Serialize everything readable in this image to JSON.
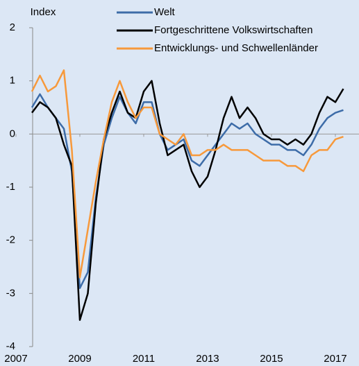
{
  "chart_data": {
    "type": "line",
    "y_label": "Index",
    "x": [
      2007.5,
      2007.75,
      2008,
      2008.25,
      2008.5,
      2008.75,
      2009,
      2009.25,
      2009.5,
      2009.75,
      2010,
      2010.25,
      2010.5,
      2010.75,
      2011,
      2011.25,
      2011.5,
      2011.75,
      2012,
      2012.25,
      2012.5,
      2012.75,
      2013,
      2013.25,
      2013.5,
      2013.75,
      2014,
      2014.25,
      2014.5,
      2014.75,
      2015,
      2015.25,
      2015.5,
      2015.75,
      2016,
      2016.25,
      2016.5,
      2016.75,
      2017,
      2017.25
    ],
    "series": [
      {
        "name": "Welt",
        "color": "#3d6ca8",
        "values": [
          0.5,
          0.75,
          0.5,
          0.3,
          0.1,
          -0.7,
          -2.9,
          -2.6,
          -1.2,
          -0.2,
          0.3,
          0.7,
          0.4,
          0.2,
          0.6,
          0.6,
          0.0,
          -0.3,
          -0.2,
          -0.1,
          -0.5,
          -0.6,
          -0.4,
          -0.2,
          0.0,
          0.2,
          0.1,
          0.2,
          0.0,
          -0.1,
          -0.2,
          -0.2,
          -0.3,
          -0.3,
          -0.4,
          -0.2,
          0.1,
          0.3,
          0.4,
          0.45
        ]
      },
      {
        "name": "Fortgeschrittene Volkswirtschaften",
        "color": "#000000",
        "values": [
          0.4,
          0.6,
          0.5,
          0.3,
          -0.2,
          -0.6,
          -3.5,
          -3.0,
          -1.3,
          -0.1,
          0.4,
          0.8,
          0.4,
          0.3,
          0.8,
          1.0,
          0.2,
          -0.4,
          -0.3,
          -0.2,
          -0.7,
          -1.0,
          -0.8,
          -0.3,
          0.3,
          0.7,
          0.3,
          0.5,
          0.3,
          0.0,
          -0.1,
          -0.1,
          -0.2,
          -0.1,
          -0.2,
          0.0,
          0.4,
          0.7,
          0.6,
          0.85
        ]
      },
      {
        "name": "Entwicklungs- und Schwellenländer",
        "color": "#f7993b",
        "values": [
          0.8,
          1.1,
          0.8,
          0.9,
          1.2,
          -0.3,
          -2.7,
          -1.8,
          -0.9,
          -0.1,
          0.6,
          1.0,
          0.6,
          0.3,
          0.5,
          0.5,
          0.0,
          -0.1,
          -0.2,
          0.0,
          -0.4,
          -0.4,
          -0.3,
          -0.3,
          -0.2,
          -0.3,
          -0.3,
          -0.3,
          -0.4,
          -0.5,
          -0.5,
          -0.5,
          -0.6,
          -0.6,
          -0.7,
          -0.4,
          -0.3,
          -0.3,
          -0.1,
          -0.05
        ]
      }
    ],
    "xlim": [
      2006.5,
      2017.74
    ],
    "xticks": [
      2007,
      2009,
      2011,
      2013,
      2015,
      2017
    ],
    "ylim": [
      -4,
      2
    ],
    "yticks": [
      -4,
      -3,
      -2,
      -1,
      0,
      1,
      2
    ]
  }
}
